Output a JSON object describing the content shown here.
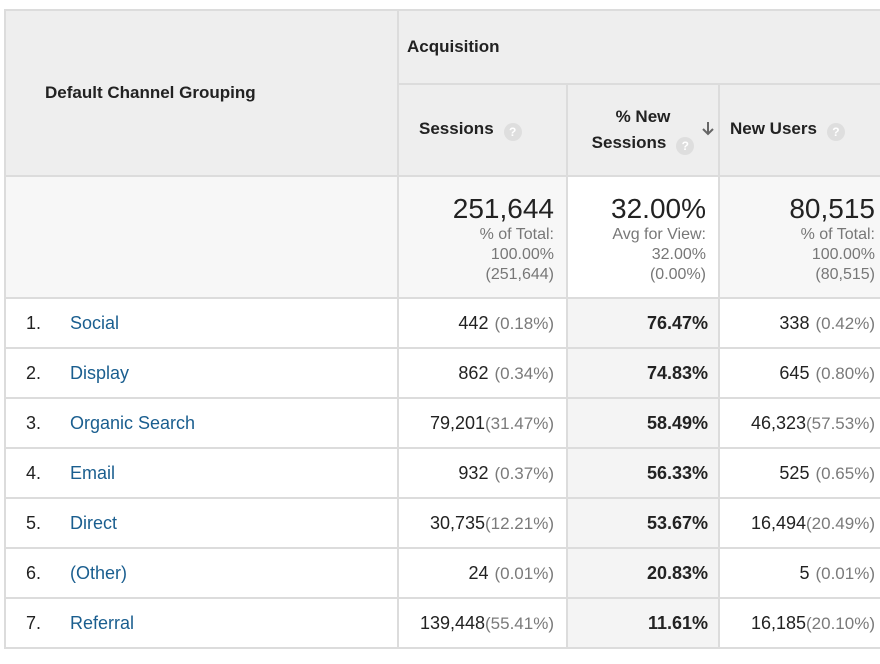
{
  "header": {
    "dimension_label": "Default Channel Grouping",
    "group_label": "Acquisition",
    "columns": {
      "sessions": "Sessions",
      "new_sessions_line1": "% New",
      "new_sessions_line2": "Sessions",
      "new_users": "New Users"
    },
    "help_glyph": "?",
    "sort_icon": "sort-down-arrow-icon",
    "sorted_column": "% New Sessions"
  },
  "totals": {
    "sessions": {
      "value": "251,644",
      "line1": "% of Total:",
      "line2": "100.00%",
      "line3": "(251,644)"
    },
    "new_sessions": {
      "value": "32.00%",
      "line1": "Avg for View:",
      "line2": "32.00%",
      "line3": "(0.00%)"
    },
    "new_users": {
      "value": "80,515",
      "line1": "% of Total:",
      "line2": "100.00%",
      "line3": "(80,515)"
    }
  },
  "rows": [
    {
      "index": "1.",
      "channel": "Social",
      "sessions": "442",
      "sessions_pct": "(0.18%)",
      "new_sessions": "76.47%",
      "new_users": "338",
      "new_users_pct": "(0.42%)"
    },
    {
      "index": "2.",
      "channel": "Display",
      "sessions": "862",
      "sessions_pct": "(0.34%)",
      "new_sessions": "74.83%",
      "new_users": "645",
      "new_users_pct": "(0.80%)"
    },
    {
      "index": "3.",
      "channel": "Organic Search",
      "sessions": "79,201",
      "sessions_pct": "(31.47%)",
      "new_sessions": "58.49%",
      "new_users": "46,323",
      "new_users_pct": "(57.53%)"
    },
    {
      "index": "4.",
      "channel": "Email",
      "sessions": "932",
      "sessions_pct": "(0.37%)",
      "new_sessions": "56.33%",
      "new_users": "525",
      "new_users_pct": "(0.65%)"
    },
    {
      "index": "5.",
      "channel": "Direct",
      "sessions": "30,735",
      "sessions_pct": "(12.21%)",
      "new_sessions": "53.67%",
      "new_users": "16,494",
      "new_users_pct": "(20.49%)"
    },
    {
      "index": "6.",
      "channel": "(Other)",
      "sessions": "24",
      "sessions_pct": "(0.01%)",
      "new_sessions": "20.83%",
      "new_users": "5",
      "new_users_pct": "(0.01%)"
    },
    {
      "index": "7.",
      "channel": "Referral",
      "sessions": "139,448",
      "sessions_pct": "(55.41%)",
      "new_sessions": "11.61%",
      "new_users": "16,185",
      "new_users_pct": "(20.10%)"
    }
  ],
  "colors": {
    "link": "#1a5e8f",
    "header_bg": "#eeeeee",
    "grid": "#dcdcdc",
    "muted_text": "#7a7a7a"
  }
}
